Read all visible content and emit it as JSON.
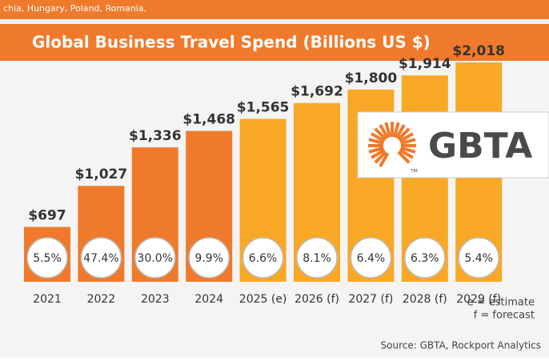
{
  "top_note": "chia, Hungary, Poland, Romania,",
  "chart_data": {
    "type": "bar",
    "title": "Global Business Travel Spend (Billions US $)",
    "categories": [
      "2021",
      "2022",
      "2023",
      "2024",
      "2025 (e)",
      "2026 (f)",
      "2027 (f)",
      "2028 (f)",
      "2029 (f)"
    ],
    "values": [
      697,
      1027,
      1336,
      1468,
      1565,
      1692,
      1800,
      1914,
      2018
    ],
    "value_labels": [
      "$697",
      "$1,027",
      "$1,336",
      "$1,468",
      "$1,565",
      "$1,692",
      "$1,800",
      "$1,914",
      "$2,018"
    ],
    "colors": [
      "#f07a2c",
      "#f07a2c",
      "#f07a2c",
      "#f07a2c",
      "#f9a826",
      "#f9a826",
      "#f9a826",
      "#f9a826",
      "#f9a826"
    ],
    "growth": [
      5.5,
      47.4,
      30.0,
      9.9,
      6.6,
      8.1,
      6.4,
      6.3,
      5.4
    ],
    "growth_labels": [
      "5.5%",
      "47.4%",
      "30.0%",
      "9.9%",
      "6.6%",
      "8.1%",
      "6.4%",
      "6.3%",
      "5.4%"
    ],
    "notes": [
      "e = estimate",
      "f = forecast"
    ],
    "source": "Source: GBTA, Rockport Analytics"
  },
  "logo": {
    "text": "GBTA",
    "mark": "TM"
  }
}
